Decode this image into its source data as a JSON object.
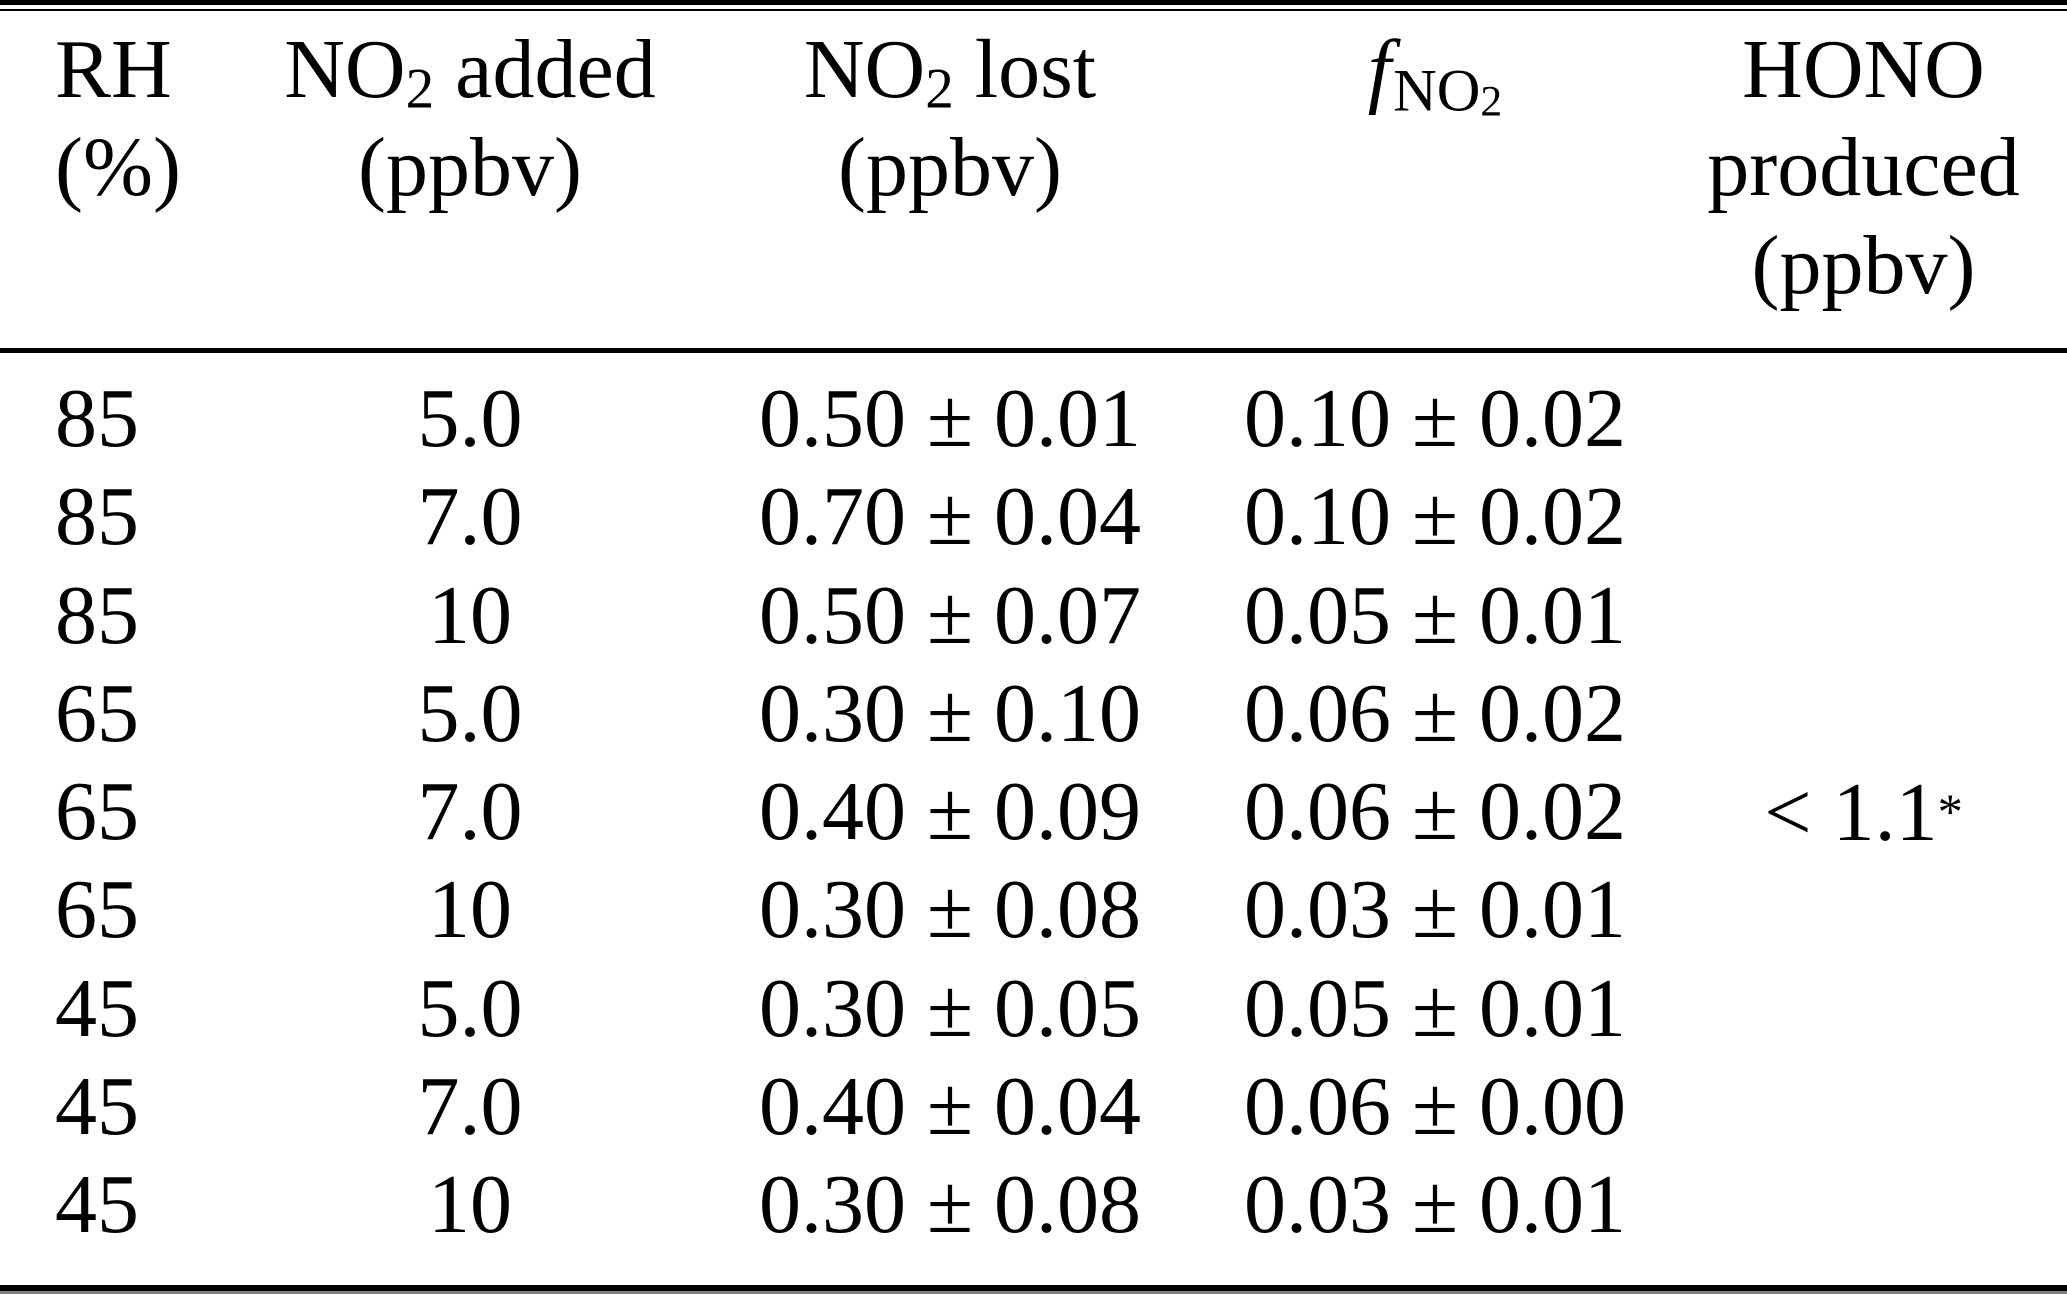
{
  "table": {
    "header": {
      "rh": {
        "line1": "RH",
        "line2": "(%)"
      },
      "no2_added": {
        "symbol_pre": "NO",
        "symbol_sub": "2",
        "label_rest": " added",
        "unit": "(ppbv)"
      },
      "no2_lost": {
        "symbol_pre": "NO",
        "symbol_sub": "2",
        "label_rest": " lost",
        "unit": "(ppbv)"
      },
      "f_no2": {
        "f": "f",
        "sub_main": "NO",
        "sub_sub": "2"
      },
      "hono": {
        "line1": "HONO",
        "line2": "produced",
        "line3": "(ppbv)"
      }
    },
    "rows": [
      {
        "rh": "85",
        "no2_added": "5.0",
        "no2_lost": "0.50 ± 0.01",
        "f_no2": "0.10 ± 0.02"
      },
      {
        "rh": "85",
        "no2_added": "7.0",
        "no2_lost": "0.70 ± 0.04",
        "f_no2": "0.10 ± 0.02"
      },
      {
        "rh": "85",
        "no2_added": "10",
        "no2_lost": "0.50 ± 0.07",
        "f_no2": "0.05 ± 0.01"
      },
      {
        "rh": "65",
        "no2_added": "5.0",
        "no2_lost": "0.30 ± 0.10",
        "f_no2": "0.06 ± 0.02"
      },
      {
        "rh": "65",
        "no2_added": "7.0",
        "no2_lost": "0.40 ± 0.09",
        "f_no2": "0.06 ± 0.02"
      },
      {
        "rh": "65",
        "no2_added": "10",
        "no2_lost": "0.30 ± 0.08",
        "f_no2": "0.03 ± 0.01"
      },
      {
        "rh": "45",
        "no2_added": "5.0",
        "no2_lost": "0.30 ± 0.05",
        "f_no2": "0.05 ± 0.01"
      },
      {
        "rh": "45",
        "no2_added": "7.0",
        "no2_lost": "0.40 ± 0.04",
        "f_no2": "0.06 ± 0.00"
      },
      {
        "rh": "45",
        "no2_added": "10",
        "no2_lost": "0.30 ± 0.08",
        "f_no2": "0.03 ± 0.01"
      }
    ],
    "hono_produced": {
      "value": "< 1.1",
      "superscript": "*"
    },
    "colors": {
      "text": "#000000",
      "background": "#ffffff",
      "rule": "#000000",
      "rule_gray": "#808080"
    }
  }
}
